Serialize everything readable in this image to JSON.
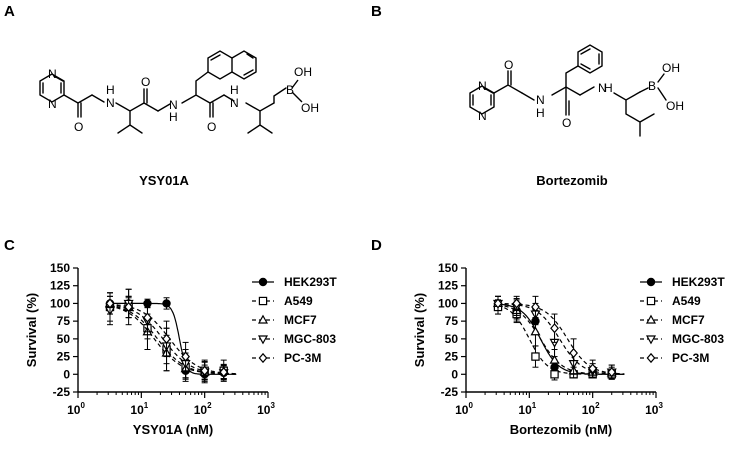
{
  "panels": {
    "A": "A",
    "B": "B",
    "C": "C",
    "D": "D"
  },
  "structures": {
    "A": {
      "name": "YSY01A",
      "atoms": {
        "n_ring_top": "N",
        "n_ring_bottom": "N",
        "nh1": "H",
        "nh1_n": "N",
        "o1": "O",
        "o2": "O",
        "nh2_n": "N",
        "nh2_h": "H",
        "o3": "O",
        "nh3_n": "N",
        "nh3_h": "H",
        "b": "B",
        "oh1": "OH",
        "oh2": "OH"
      }
    },
    "B": {
      "name": "Bortezomib",
      "atoms": {
        "n_ring_top": "N",
        "n_ring_bottom": "N",
        "nh1_n": "N",
        "nh1_h": "H",
        "o1": "O",
        "o2": "O",
        "nh2_n": "N",
        "nh2_h": "H",
        "b": "B",
        "oh1": "OH",
        "oh2": "OH"
      }
    }
  },
  "chart_data": [
    {
      "panel": "C",
      "type": "scatter",
      "xlabel": "YSY01A (nM)",
      "ylabel": "Survival (%)",
      "xscale": "log",
      "xlim": [
        1,
        1000
      ],
      "ylim": [
        -25,
        150
      ],
      "yticks": [
        "150",
        "125",
        "100",
        "75",
        "50",
        "25",
        "0",
        "-25"
      ],
      "xticks": [
        {
          "base": "10",
          "exp": "0"
        },
        {
          "base": "10",
          "exp": "1"
        },
        {
          "base": "10",
          "exp": "2"
        },
        {
          "base": "10",
          "exp": "3"
        }
      ],
      "legend_position": "right",
      "x": [
        3.2,
        6.3,
        12.5,
        25,
        50,
        100,
        200
      ],
      "series": [
        {
          "name": "HEK293T",
          "marker": "circle-filled",
          "line": "solid",
          "values": [
            100,
            100,
            100,
            100,
            5,
            0,
            2
          ],
          "errors": [
            10,
            8,
            6,
            8,
            10,
            8,
            8
          ],
          "ic50": 40,
          "hill": 8
        },
        {
          "name": "A549",
          "marker": "square-open",
          "line": "dashed",
          "values": [
            95,
            95,
            65,
            35,
            10,
            5,
            5
          ],
          "errors": [
            20,
            25,
            30,
            30,
            20,
            15,
            15
          ],
          "ic50": 18,
          "hill": 2
        },
        {
          "name": "MCF7",
          "marker": "triangle-up-open",
          "line": "dashed",
          "values": [
            100,
            95,
            60,
            30,
            8,
            3,
            4
          ],
          "errors": [
            15,
            15,
            25,
            25,
            15,
            10,
            10
          ],
          "ic50": 16,
          "hill": 2
        },
        {
          "name": "MGC-803",
          "marker": "triangle-down-open",
          "line": "dashed",
          "values": [
            90,
            100,
            75,
            40,
            15,
            3,
            2
          ],
          "errors": [
            20,
            20,
            25,
            25,
            20,
            15,
            10
          ],
          "ic50": 22,
          "hill": 2
        },
        {
          "name": "PC-3M",
          "marker": "diamond-open",
          "line": "dashed",
          "values": [
            100,
            95,
            80,
            50,
            25,
            5,
            3
          ],
          "errors": [
            15,
            15,
            20,
            25,
            20,
            12,
            10
          ],
          "ic50": 28,
          "hill": 2
        }
      ]
    },
    {
      "panel": "D",
      "type": "scatter",
      "xlabel": "Bortezomib (nM)",
      "ylabel": "Survival (%)",
      "xscale": "log",
      "xlim": [
        1,
        1000
      ],
      "ylim": [
        -25,
        150
      ],
      "yticks": [
        "150",
        "125",
        "100",
        "75",
        "50",
        "25",
        "0",
        "-25"
      ],
      "xticks": [
        {
          "base": "10",
          "exp": "0"
        },
        {
          "base": "10",
          "exp": "1"
        },
        {
          "base": "10",
          "exp": "2"
        },
        {
          "base": "10",
          "exp": "3"
        }
      ],
      "legend_position": "right",
      "x": [
        3.2,
        6.3,
        12.5,
        25,
        50,
        100,
        200
      ],
      "series": [
        {
          "name": "HEK293T",
          "marker": "circle-filled",
          "line": "solid",
          "values": [
            95,
            90,
            75,
            10,
            0,
            0,
            0
          ],
          "errors": [
            10,
            12,
            15,
            10,
            5,
            5,
            5
          ],
          "ic50": 15,
          "hill": 3
        },
        {
          "name": "A549",
          "marker": "square-open",
          "line": "dashed",
          "values": [
            95,
            85,
            25,
            0,
            0,
            0,
            0
          ],
          "errors": [
            10,
            12,
            15,
            8,
            5,
            5,
            5
          ],
          "ic50": 10,
          "hill": 3
        },
        {
          "name": "MCF7",
          "marker": "triangle-up-open",
          "line": "dashed",
          "values": [
            100,
            90,
            60,
            20,
            5,
            3,
            2
          ],
          "errors": [
            10,
            15,
            20,
            15,
            10,
            8,
            8
          ],
          "ic50": 15,
          "hill": 2.5
        },
        {
          "name": "MGC-803",
          "marker": "triangle-down-open",
          "line": "dashed",
          "values": [
            100,
            95,
            85,
            45,
            15,
            5,
            3
          ],
          "errors": [
            10,
            12,
            15,
            20,
            15,
            10,
            10
          ],
          "ic50": 30,
          "hill": 2.5
        },
        {
          "name": "PC-3M",
          "marker": "diamond-open",
          "line": "dashed",
          "values": [
            100,
            100,
            95,
            65,
            30,
            8,
            3
          ],
          "errors": [
            10,
            10,
            15,
            20,
            20,
            12,
            10
          ],
          "ic50": 40,
          "hill": 2.5
        }
      ]
    }
  ]
}
